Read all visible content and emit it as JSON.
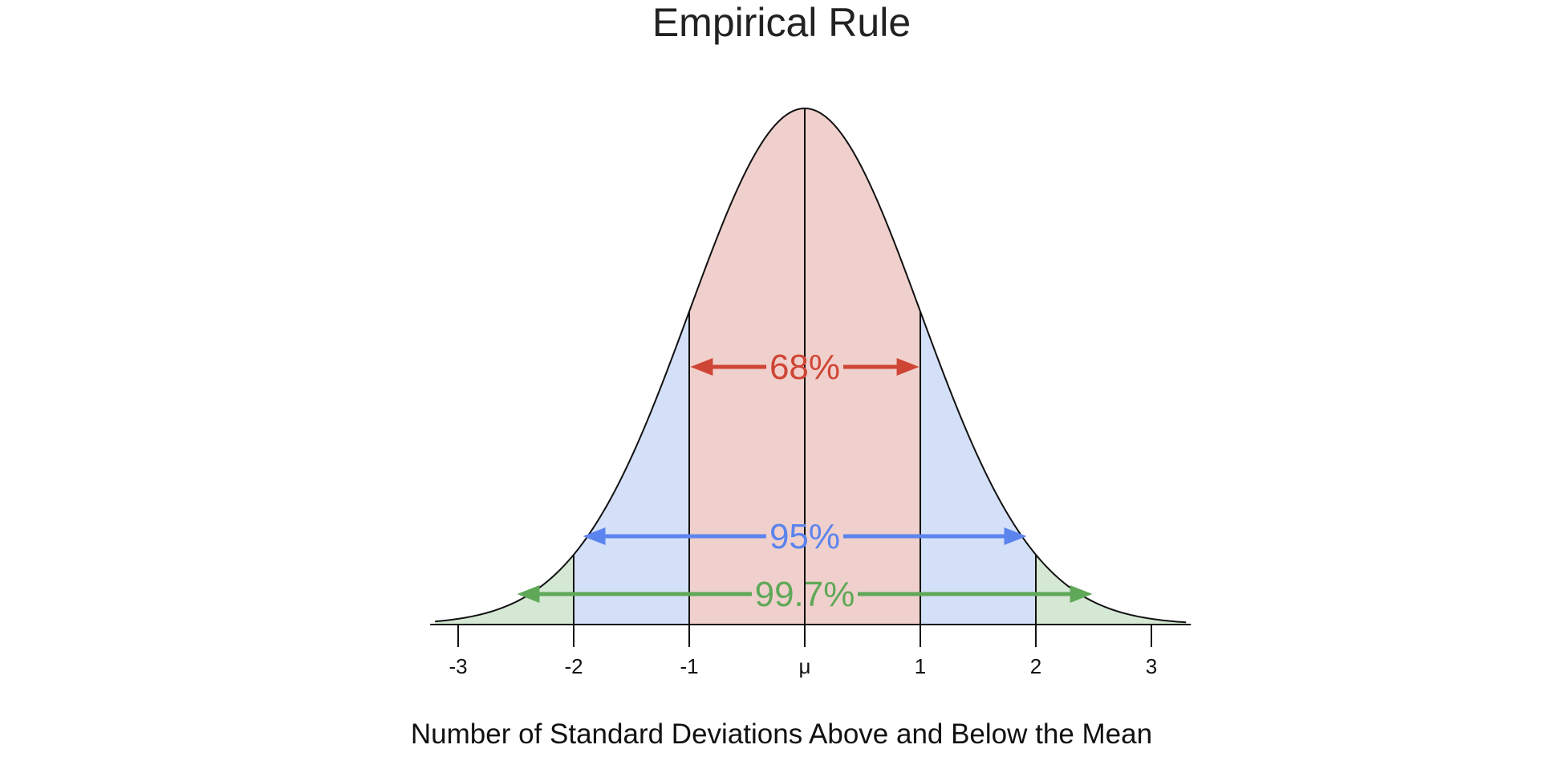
{
  "chart_data": {
    "type": "area",
    "title": "Empirical Rule",
    "xlabel": "Number of Standard Deviations Above and Below the Mean",
    "ylabel": "",
    "xlim": [
      -3.2,
      3.3
    ],
    "grid": false,
    "legend": "none",
    "ticks": [
      {
        "value": -3,
        "label": "-3"
      },
      {
        "value": -2,
        "label": "-2"
      },
      {
        "value": -1,
        "label": "-1"
      },
      {
        "value": 0,
        "label": "μ"
      },
      {
        "value": 1,
        "label": "1"
      },
      {
        "value": 2,
        "label": "2"
      },
      {
        "value": 3,
        "label": "3"
      }
    ],
    "bands": [
      {
        "label": "99.7%",
        "from": -3,
        "to": 3,
        "fill": "#d5e8d4",
        "color": "#5fa858"
      },
      {
        "label": "95%",
        "from": -2,
        "to": 2,
        "fill": "#d4e0f8",
        "color": "#5b84ee"
      },
      {
        "label": "68%",
        "from": -1,
        "to": 1,
        "fill": "#f0d0cc",
        "color": "#cf4535"
      }
    ],
    "dividers": [
      -2,
      -1,
      0,
      1,
      2
    ]
  }
}
